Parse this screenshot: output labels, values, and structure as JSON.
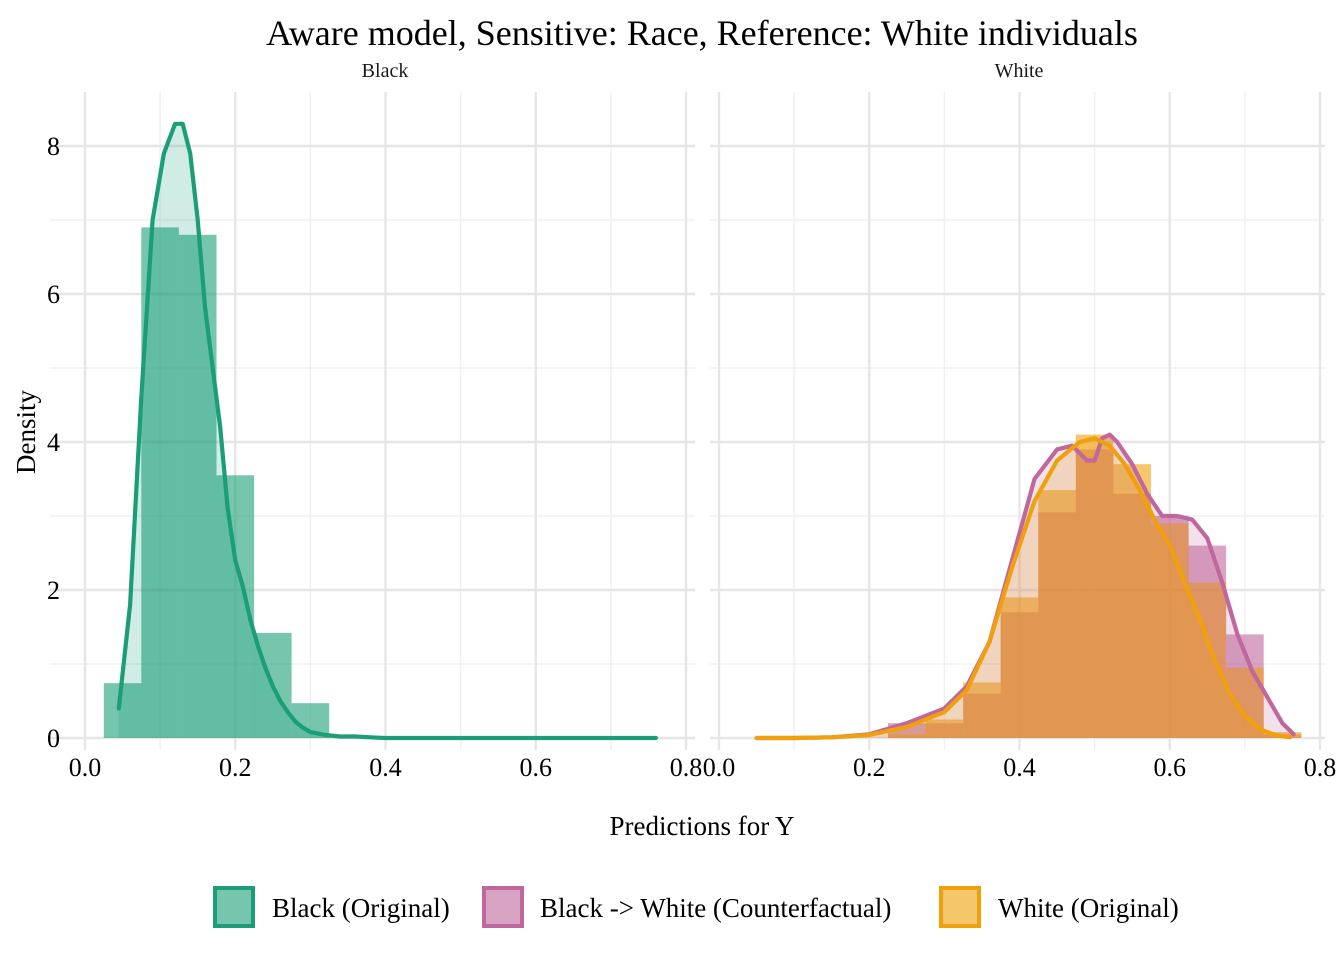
{
  "chart_data": {
    "type": "histogram-density",
    "title": "Aware model, Sensitive: Race, Reference: White individuals",
    "xlabel": "Predictions for Y",
    "ylabel": "Density",
    "ylim": [
      0,
      8.5
    ],
    "x_ticks": [
      "0.0",
      "0.2",
      "0.4",
      "0.6",
      "0.8"
    ],
    "y_ticks": [
      "0",
      "2",
      "4",
      "6",
      "8"
    ],
    "grid": true,
    "legend_position": "bottom",
    "colors": {
      "black_original": "#1b9e77",
      "counterfactual": "#c0679d",
      "white_original": "#f0a00b"
    },
    "legend": [
      {
        "key": "black_original",
        "label": "Black (Original)"
      },
      {
        "key": "counterfactual",
        "label": "Black -> White (Counterfactual)"
      },
      {
        "key": "white_original",
        "label": "White (Original)"
      }
    ],
    "panels": [
      {
        "strip": "Black",
        "xlim": [
          0.0,
          0.8
        ],
        "series": [
          {
            "key": "black_original",
            "histogram": {
              "bin_edges": [
                0.025,
                0.075,
                0.125,
                0.175,
                0.225,
                0.275,
                0.325,
                0.375,
                0.425
              ],
              "density": [
                0.74,
                6.9,
                6.8,
                3.55,
                1.42,
                0.47,
                0.0,
                0.0
              ]
            },
            "density_curve": {
              "x": [
                0.045,
                0.06,
                0.075,
                0.09,
                0.105,
                0.12,
                0.13,
                0.14,
                0.15,
                0.16,
                0.17,
                0.18,
                0.19,
                0.2,
                0.21,
                0.22,
                0.23,
                0.24,
                0.25,
                0.26,
                0.27,
                0.28,
                0.29,
                0.3,
                0.32,
                0.34,
                0.36,
                0.38,
                0.4,
                0.45,
                0.5,
                0.6,
                0.7,
                0.76
              ],
              "y": [
                0.4,
                1.8,
                4.6,
                7.0,
                7.9,
                8.3,
                8.3,
                7.9,
                7.0,
                5.8,
                5.0,
                4.2,
                3.1,
                2.4,
                2.05,
                1.6,
                1.25,
                0.95,
                0.7,
                0.5,
                0.35,
                0.22,
                0.14,
                0.08,
                0.04,
                0.02,
                0.02,
                0.01,
                0.0,
                0.0,
                0.0,
                0.0,
                0.0,
                0.0
              ]
            }
          }
        ]
      },
      {
        "strip": "White",
        "xlim": [
          0.0,
          0.8
        ],
        "series": [
          {
            "key": "counterfactual",
            "histogram": {
              "bin_edges": [
                0.225,
                0.275,
                0.325,
                0.375,
                0.425,
                0.475,
                0.525,
                0.575,
                0.625,
                0.675,
                0.725,
                0.775
              ],
              "density": [
                0.2,
                0.2,
                0.6,
                1.7,
                3.05,
                3.9,
                3.3,
                3.0,
                2.6,
                1.4,
                0.05
              ]
            },
            "density_curve": {
              "x": [
                0.05,
                0.1,
                0.15,
                0.2,
                0.25,
                0.3,
                0.33,
                0.36,
                0.39,
                0.42,
                0.45,
                0.47,
                0.49,
                0.5,
                0.51,
                0.52,
                0.53,
                0.55,
                0.57,
                0.59,
                0.61,
                0.63,
                0.65,
                0.67,
                0.69,
                0.71,
                0.73,
                0.75,
                0.765
              ],
              "y": [
                0.0,
                0.0,
                0.01,
                0.05,
                0.2,
                0.4,
                0.7,
                1.3,
                2.4,
                3.5,
                3.9,
                3.95,
                3.75,
                3.75,
                4.05,
                4.1,
                4.0,
                3.7,
                3.3,
                3.0,
                3.0,
                2.95,
                2.7,
                2.1,
                1.4,
                0.9,
                0.55,
                0.2,
                0.05
              ]
            }
          },
          {
            "key": "white_original",
            "histogram": {
              "bin_edges": [
                0.225,
                0.275,
                0.325,
                0.375,
                0.425,
                0.475,
                0.525,
                0.575,
                0.625,
                0.675,
                0.725,
                0.775
              ],
              "density": [
                0.05,
                0.25,
                0.75,
                1.9,
                3.35,
                4.1,
                3.7,
                2.9,
                2.1,
                0.95,
                0.08
              ]
            },
            "density_curve": {
              "x": [
                0.05,
                0.1,
                0.15,
                0.2,
                0.25,
                0.3,
                0.33,
                0.36,
                0.39,
                0.42,
                0.45,
                0.48,
                0.5,
                0.52,
                0.54,
                0.56,
                0.58,
                0.6,
                0.62,
                0.64,
                0.66,
                0.68,
                0.7,
                0.72,
                0.74,
                0.76
              ],
              "y": [
                0.0,
                0.0,
                0.01,
                0.04,
                0.15,
                0.35,
                0.65,
                1.3,
                2.3,
                3.2,
                3.75,
                4.0,
                4.05,
                3.95,
                3.7,
                3.35,
                2.95,
                2.6,
                2.1,
                1.6,
                1.05,
                0.6,
                0.3,
                0.12,
                0.04,
                0.01
              ]
            }
          }
        ]
      }
    ]
  }
}
